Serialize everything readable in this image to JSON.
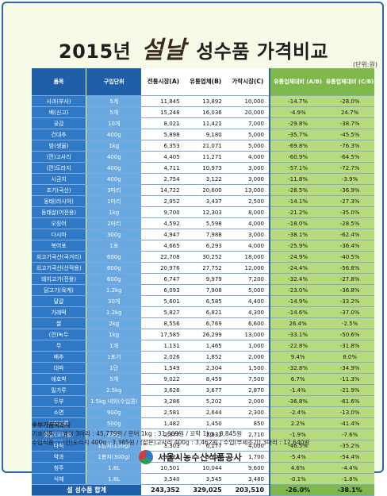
{
  "title": {
    "year": "2015년",
    "script": "설날",
    "rest": "성수품 가격비교"
  },
  "unit_note": "(단위:원)",
  "headers": {
    "name": "품목",
    "unit": "구입단위",
    "a": "전통시장(A)",
    "b": "유통업체(B)",
    "c": "가락시장(C)",
    "ab": "유통업체대비 (A/B)",
    "cb": "유통업체대비 (C/B)"
  },
  "rows": [
    {
      "name": "사과(부사)",
      "unit": "5개",
      "a": "11,845",
      "b": "13,892",
      "c": "10,000",
      "ab": "-14.7%",
      "cb": "-28.0%"
    },
    {
      "name": "배(신고)",
      "unit": "5개",
      "a": "15,248",
      "b": "16,036",
      "c": "20,000",
      "ab": "-4.9%",
      "cb": "24.7%"
    },
    {
      "name": "곶감",
      "unit": "10개",
      "a": "8,021",
      "b": "11,421",
      "c": "7,000",
      "ab": "-29.8%",
      "cb": "-38.7%"
    },
    {
      "name": "건대추",
      "unit": "400g",
      "a": "5,898",
      "b": "9,180",
      "c": "5,000",
      "ab": "-35.7%",
      "cb": "-45.5%"
    },
    {
      "name": "밤(생율)",
      "unit": "1kg",
      "a": "6,353",
      "b": "21,071",
      "c": "5,000",
      "ab": "-69.8%",
      "cb": "-76.3%"
    },
    {
      "name": "(깐)고사리",
      "unit": "400g",
      "a": "4,405",
      "b": "11,271",
      "c": "4,000",
      "ab": "-60.9%",
      "cb": "-64.5%"
    },
    {
      "name": "(깐)도라지",
      "unit": "400g",
      "a": "4,711",
      "b": "10,973",
      "c": "3,000",
      "ab": "-57.1%",
      "cb": "-72.7%"
    },
    {
      "name": "시금치",
      "unit": "400g",
      "a": "2,754",
      "b": "3,122",
      "c": "3,000",
      "ab": "-11.8%",
      "cb": "-3.9%"
    },
    {
      "name": "조기(국산)",
      "unit": "3마리",
      "a": "14,722",
      "b": "20,600",
      "c": "13,000",
      "ab": "-28.5%",
      "cb": "-36.9%"
    },
    {
      "name": "동태(러시아)",
      "unit": "1마리",
      "a": "2,952",
      "b": "3,437",
      "c": "2,500",
      "ab": "-14.1%",
      "cb": "-27.3%"
    },
    {
      "name": "동태살(어전용)",
      "unit": "1kg",
      "a": "9,700",
      "b": "12,303",
      "c": "8,000",
      "ab": "-21.2%",
      "cb": "-35.0%"
    },
    {
      "name": "오징어",
      "unit": "2마리",
      "a": "4,592",
      "b": "5,598",
      "c": "4,000",
      "ab": "-18.0%",
      "cb": "-28.5%"
    },
    {
      "name": "다시마",
      "unit": "300g",
      "a": "4,947",
      "b": "7,988",
      "c": "3,000",
      "ab": "-38.1%",
      "cb": "-62.4%"
    },
    {
      "name": "북어포",
      "unit": "1포",
      "a": "4,665",
      "b": "6,293",
      "c": "4,000",
      "ab": "-25.9%",
      "cb": "-36.4%"
    },
    {
      "name": "쇠고기국산(국거리)",
      "unit": "600g",
      "a": "22,708",
      "b": "30,252",
      "c": "18,000",
      "ab": "-24.9%",
      "cb": "-40.5%"
    },
    {
      "name": "쇠고기국산(산적용)",
      "unit": "600g",
      "a": "20,976",
      "b": "27,752",
      "c": "12,000",
      "ab": "-24.4%",
      "cb": "-56.8%"
    },
    {
      "name": "돼지고기(전용)",
      "unit": "600g",
      "a": "6,747",
      "b": "9,979",
      "c": "7,200",
      "ab": "-32.4%",
      "cb": "-27.8%"
    },
    {
      "name": "닭고기(육계)",
      "unit": "1.2kg",
      "a": "6,093",
      "b": "7,908",
      "c": "5,000",
      "ab": "-23.0%",
      "cb": "-36.8%"
    },
    {
      "name": "달걀",
      "unit": "30개",
      "a": "5,601",
      "b": "6,585",
      "c": "4,400",
      "ab": "-14.9%",
      "cb": "-33.2%"
    },
    {
      "name": "가래떡",
      "unit": "1.2kg",
      "a": "5,827",
      "b": "6,821",
      "c": "4,300",
      "ab": "-14.6%",
      "cb": "-37.0%"
    },
    {
      "name": "쌀",
      "unit": "2kg",
      "a": "8,556",
      "b": "6,769",
      "c": "6,600",
      "ab": "26.4%",
      "cb": "-2.5%"
    },
    {
      "name": "(깐)녹두",
      "unit": "1kg",
      "a": "17,585",
      "b": "26,299",
      "c": "13,000",
      "ab": "-33.1%",
      "cb": "-50.6%"
    },
    {
      "name": "무",
      "unit": "1개",
      "a": "1,131",
      "b": "1,465",
      "c": "1,000",
      "ab": "-22.8%",
      "cb": "-31.8%"
    },
    {
      "name": "배추",
      "unit": "1포기",
      "a": "2,026",
      "b": "1,852",
      "c": "2,000",
      "ab": "9.4%",
      "cb": "8.0%"
    },
    {
      "name": "대파",
      "unit": "1단",
      "a": "1,549",
      "b": "2,304",
      "c": "1,500",
      "ab": "-32.8%",
      "cb": "-34.9%"
    },
    {
      "name": "애호박",
      "unit": "5개",
      "a": "9,022",
      "b": "8,459",
      "c": "7,500",
      "ab": "6.7%",
      "cb": "-11.3%"
    },
    {
      "name": "밀가루",
      "unit": "2.5kg",
      "a": "3,626",
      "b": "3,677",
      "c": "2,870",
      "ab": "-1.4%",
      "cb": "-21.9%"
    },
    {
      "name": "두부",
      "unit": "1.5kg 내외(수입콩)",
      "a": "3,286",
      "b": "5,202",
      "c": "2,000",
      "ab": "-36.8%",
      "cb": "-61.6%"
    },
    {
      "name": "소면",
      "unit": "900g",
      "a": "2,581",
      "b": "2,644",
      "c": "2,300",
      "ab": "-2.4%",
      "cb": "-13.0%"
    },
    {
      "name": "부침가루",
      "unit": "500g",
      "a": "1,482",
      "b": "1,450",
      "c": "850",
      "ab": "2.2%",
      "cb": "-41.4%"
    },
    {
      "name": "맛살(꼬치용)",
      "unit": "500g",
      "a": "2,877",
      "b": "2,932",
      "c": "2,710",
      "ab": "-1.9%",
      "cb": "-7.6%"
    },
    {
      "name": "다식",
      "unit": "1봉지(150g)",
      "a": "3,303",
      "b": "6,177",
      "c": "4,000",
      "ab": "-46.5%",
      "cb": "-35.2%"
    },
    {
      "name": "약과",
      "unit": "1봉지(300g)",
      "a": "3,523",
      "b": "3,724",
      "c": "1,700",
      "ab": "-5.4%",
      "cb": "-54.4%"
    },
    {
      "name": "청주",
      "unit": "1.8L",
      "a": "10,501",
      "b": "10,044",
      "c": "9,600",
      "ab": "4.6%",
      "cb": "-4.4%"
    },
    {
      "name": "식혜",
      "unit": "1.8L",
      "a": "3,540",
      "b": "3,545",
      "c": "3,480",
      "ab": "-0.1%",
      "cb": "-1.8%"
    }
  ],
  "total": {
    "label": "설 성수품 합계",
    "a": "243,352",
    "b": "329,025",
    "c": "203,510",
    "ab": "-26.0%",
    "cb": "-38.1%"
  },
  "notes": {
    "title": "※부가품목조사",
    "line1": "기호식품 ☞ 병어 3마리 : 45,779원 / 문어 1kg : 31,669원 / 꼬막 1kg : 8,845원",
    "line2": "수입식품 ☞ (깐)도라지 400g : 3,385원 / (삶은)고사리 400g : 3,462원 / 수입(부세조기) 3마리 : 12,640원"
  },
  "org": "서울시농수산식품공사"
}
